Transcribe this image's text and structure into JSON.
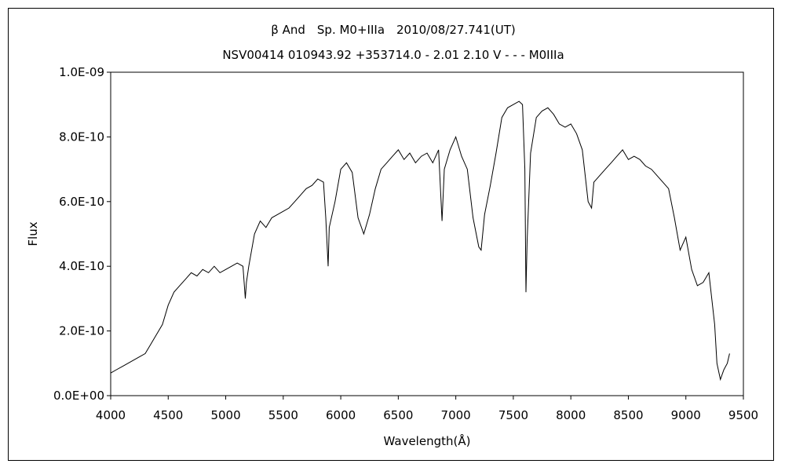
{
  "chart_data": {
    "type": "line",
    "title": "β And　Sp. M0+IIIa　2010/08/27.741(UT)",
    "subtitle": "NSV00414 010943.92 +353714.0 - 2.01 2.10 V - - - M0IIIa",
    "xlabel": "Wavelength(Å)",
    "ylabel": "Flux",
    "xlim": [
      4000,
      9500
    ],
    "ylim": [
      0,
      1e-09
    ],
    "x_ticks": [
      4000,
      4500,
      5000,
      5500,
      6000,
      6500,
      7000,
      7500,
      8000,
      8500,
      9000,
      9500
    ],
    "x_tick_labels": [
      "4000",
      "4500",
      "5000",
      "5500",
      "6000",
      "6500",
      "7000",
      "7500",
      "8000",
      "8500",
      "9000",
      "9500"
    ],
    "y_ticks": [
      0,
      2e-10,
      4e-10,
      6e-10,
      8e-10,
      1e-09
    ],
    "y_tick_labels": [
      "0.0E+00",
      "2.0E-10",
      "4.0E-10",
      "6.0E-10",
      "8.0E-10",
      "1.0E-09"
    ],
    "grid": false,
    "line_color": "#000000",
    "series": [
      {
        "x": [
          4000,
          4050,
          4100,
          4150,
          4200,
          4250,
          4300,
          4350,
          4400,
          4450,
          4500,
          4550,
          4600,
          4650,
          4700,
          4750,
          4800,
          4850,
          4900,
          4950,
          5000,
          5050,
          5100,
          5150,
          5170,
          5180,
          5200,
          5250,
          5300,
          5350,
          5400,
          5450,
          5500,
          5550,
          5600,
          5650,
          5700,
          5750,
          5800,
          5850,
          5870,
          5890,
          5900,
          5950,
          6000,
          6050,
          6100,
          6150,
          6200,
          6250,
          6300,
          6350,
          6400,
          6450,
          6500,
          6550,
          6600,
          6650,
          6700,
          6750,
          6800,
          6850,
          6880,
          6900,
          6950,
          7000,
          7050,
          7100,
          7150,
          7200,
          7220,
          7250,
          7300,
          7350,
          7400,
          7450,
          7500,
          7550,
          7580,
          7600,
          7610,
          7620,
          7650,
          7700,
          7750,
          7800,
          7850,
          7900,
          7950,
          8000,
          8050,
          8100,
          8150,
          8180,
          8200,
          8250,
          8300,
          8350,
          8400,
          8450,
          8500,
          8550,
          8600,
          8650,
          8700,
          8750,
          8800,
          8850,
          8900,
          8950,
          9000,
          9050,
          9100,
          9150,
          9200,
          9250,
          9270,
          9300,
          9330,
          9360,
          9380
        ],
        "y": [
          7e-11,
          8e-11,
          9e-11,
          1e-10,
          1.1e-10,
          1.2e-10,
          1.3e-10,
          1.6e-10,
          1.9e-10,
          2.2e-10,
          2.8e-10,
          3.2e-10,
          3.4e-10,
          3.6e-10,
          3.8e-10,
          3.7e-10,
          3.9e-10,
          3.8e-10,
          4e-10,
          3.8e-10,
          3.9e-10,
          4e-10,
          4.1e-10,
          4e-10,
          3e-10,
          3.5e-10,
          4e-10,
          5e-10,
          5.4e-10,
          5.2e-10,
          5.5e-10,
          5.6e-10,
          5.7e-10,
          5.8e-10,
          6e-10,
          6.2e-10,
          6.4e-10,
          6.5e-10,
          6.7e-10,
          6.6e-10,
          5.5e-10,
          4e-10,
          5.2e-10,
          6e-10,
          7e-10,
          7.2e-10,
          6.9e-10,
          5.5e-10,
          5e-10,
          5.6e-10,
          6.4e-10,
          7e-10,
          7.2e-10,
          7.4e-10,
          7.6e-10,
          7.3e-10,
          7.5e-10,
          7.2e-10,
          7.4e-10,
          7.5e-10,
          7.2e-10,
          7.6e-10,
          5.4e-10,
          7e-10,
          7.6e-10,
          8e-10,
          7.4e-10,
          7e-10,
          5.5e-10,
          4.6e-10,
          4.5e-10,
          5.6e-10,
          6.5e-10,
          7.5e-10,
          8.6e-10,
          8.9e-10,
          9e-10,
          9.1e-10,
          9e-10,
          7e-10,
          3.2e-10,
          4.8e-10,
          7.5e-10,
          8.6e-10,
          8.8e-10,
          8.9e-10,
          8.7e-10,
          8.4e-10,
          8.3e-10,
          8.4e-10,
          8.1e-10,
          7.6e-10,
          6e-10,
          5.8e-10,
          6.6e-10,
          6.8e-10,
          7e-10,
          7.2e-10,
          7.4e-10,
          7.6e-10,
          7.3e-10,
          7.4e-10,
          7.3e-10,
          7.1e-10,
          7e-10,
          6.8e-10,
          6.6e-10,
          6.4e-10,
          5.5e-10,
          4.5e-10,
          4.9e-10,
          3.9e-10,
          3.4e-10,
          3.5e-10,
          3.8e-10,
          2.2e-10,
          1e-10,
          5e-11,
          8e-11,
          1e-10,
          1.3e-10
        ]
      }
    ]
  }
}
